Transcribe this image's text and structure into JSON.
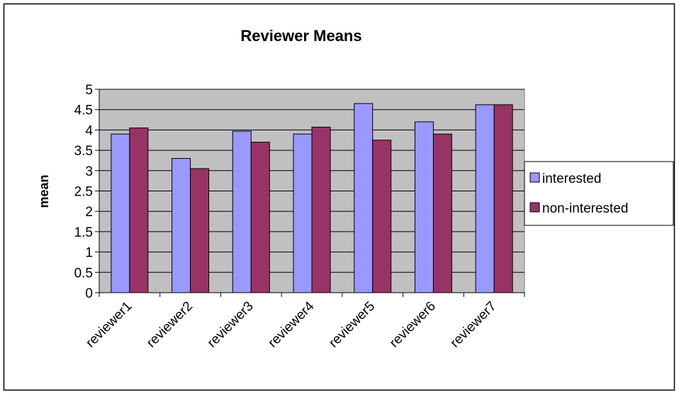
{
  "chart_data": {
    "type": "bar",
    "title": "Reviewer Means",
    "y_label": "mean",
    "categories": [
      "reviewer1",
      "reviewer2",
      "reviewer3",
      "reviewer4",
      "reviewer5",
      "reviewer6",
      "reviewer7"
    ],
    "series": [
      {
        "name": "interested",
        "color": "#9999ff",
        "values": [
          3.9,
          3.3,
          3.97,
          3.9,
          4.65,
          4.2,
          4.62
        ]
      },
      {
        "name": "non-interested",
        "color": "#993366",
        "values": [
          4.05,
          3.05,
          3.7,
          4.07,
          3.75,
          3.9,
          4.62
        ]
      }
    ],
    "ylim": [
      0,
      5
    ],
    "yticks": [
      0,
      0.5,
      1,
      1.5,
      2,
      2.5,
      3,
      3.5,
      4,
      4.5,
      5
    ],
    "grid": true,
    "legend": "right"
  }
}
